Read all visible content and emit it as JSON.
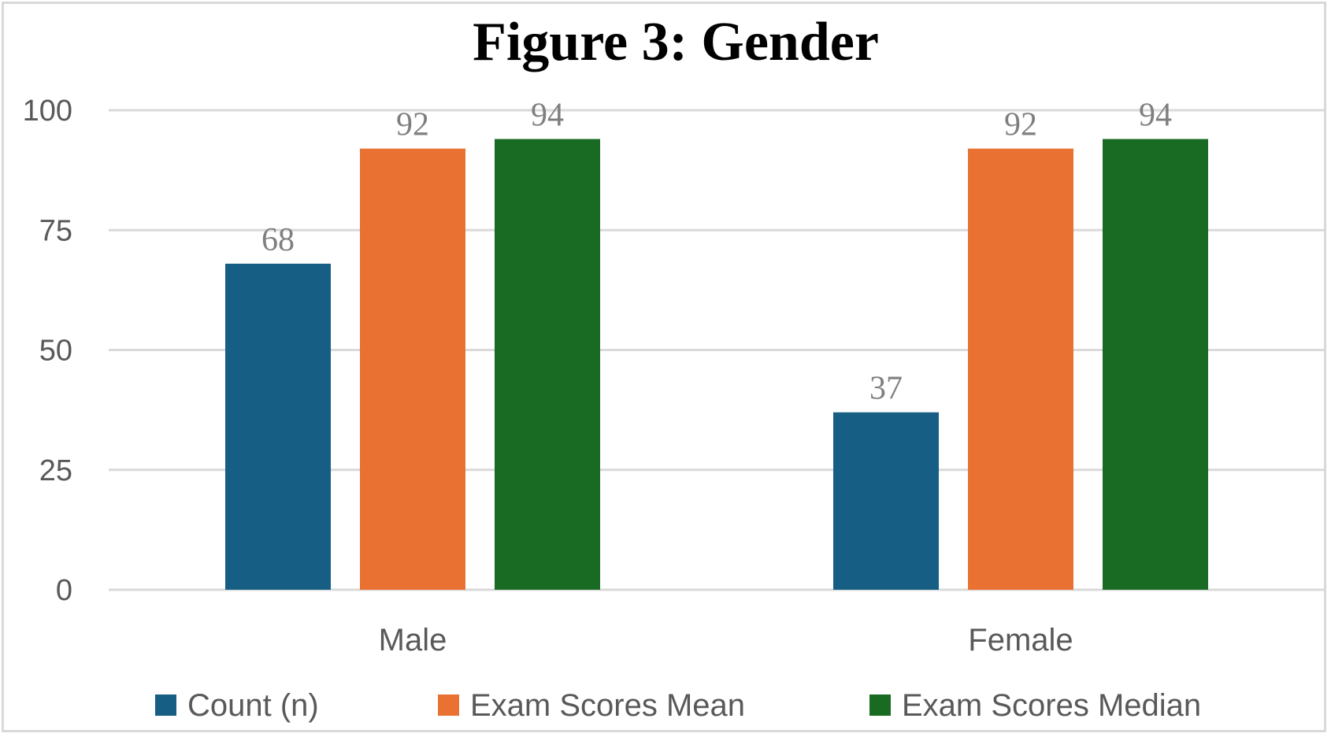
{
  "chart_data": {
    "type": "bar",
    "title": "Figure 3: Gender",
    "categories": [
      "Male",
      "Female"
    ],
    "series": [
      {
        "name": "Count (n)",
        "values": [
          68,
          37
        ],
        "color": "#165e83"
      },
      {
        "name": "Exam Scores Mean",
        "values": [
          92,
          92
        ],
        "color": "#e97132"
      },
      {
        "name": "Exam Scores Median",
        "values": [
          94,
          94
        ],
        "color": "#196b24"
      }
    ],
    "y_ticks": [
      0,
      25,
      50,
      75,
      100
    ],
    "ylim": [
      0,
      100
    ],
    "xlabel": "",
    "ylabel": "",
    "grid": true,
    "legend_position": "bottom",
    "data_labels": true
  }
}
